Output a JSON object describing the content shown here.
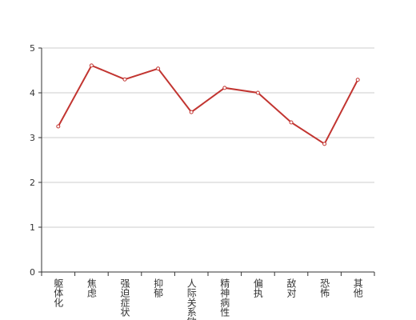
{
  "chart_data": {
    "type": "line",
    "categories": [
      "躯体化",
      "焦虑",
      "强迫症状",
      "抑郁",
      "人际关系敏感",
      "精神病性",
      "偏执",
      "敌对",
      "恐怖",
      "其他"
    ],
    "values": [
      3.25,
      4.61,
      4.3,
      4.54,
      3.57,
      4.11,
      4.0,
      3.34,
      2.86,
      4.29
    ],
    "color": "#c23531",
    "ylim": [
      0,
      5
    ],
    "yticks": [
      0,
      1,
      2,
      3,
      4,
      5
    ],
    "grid": true
  }
}
